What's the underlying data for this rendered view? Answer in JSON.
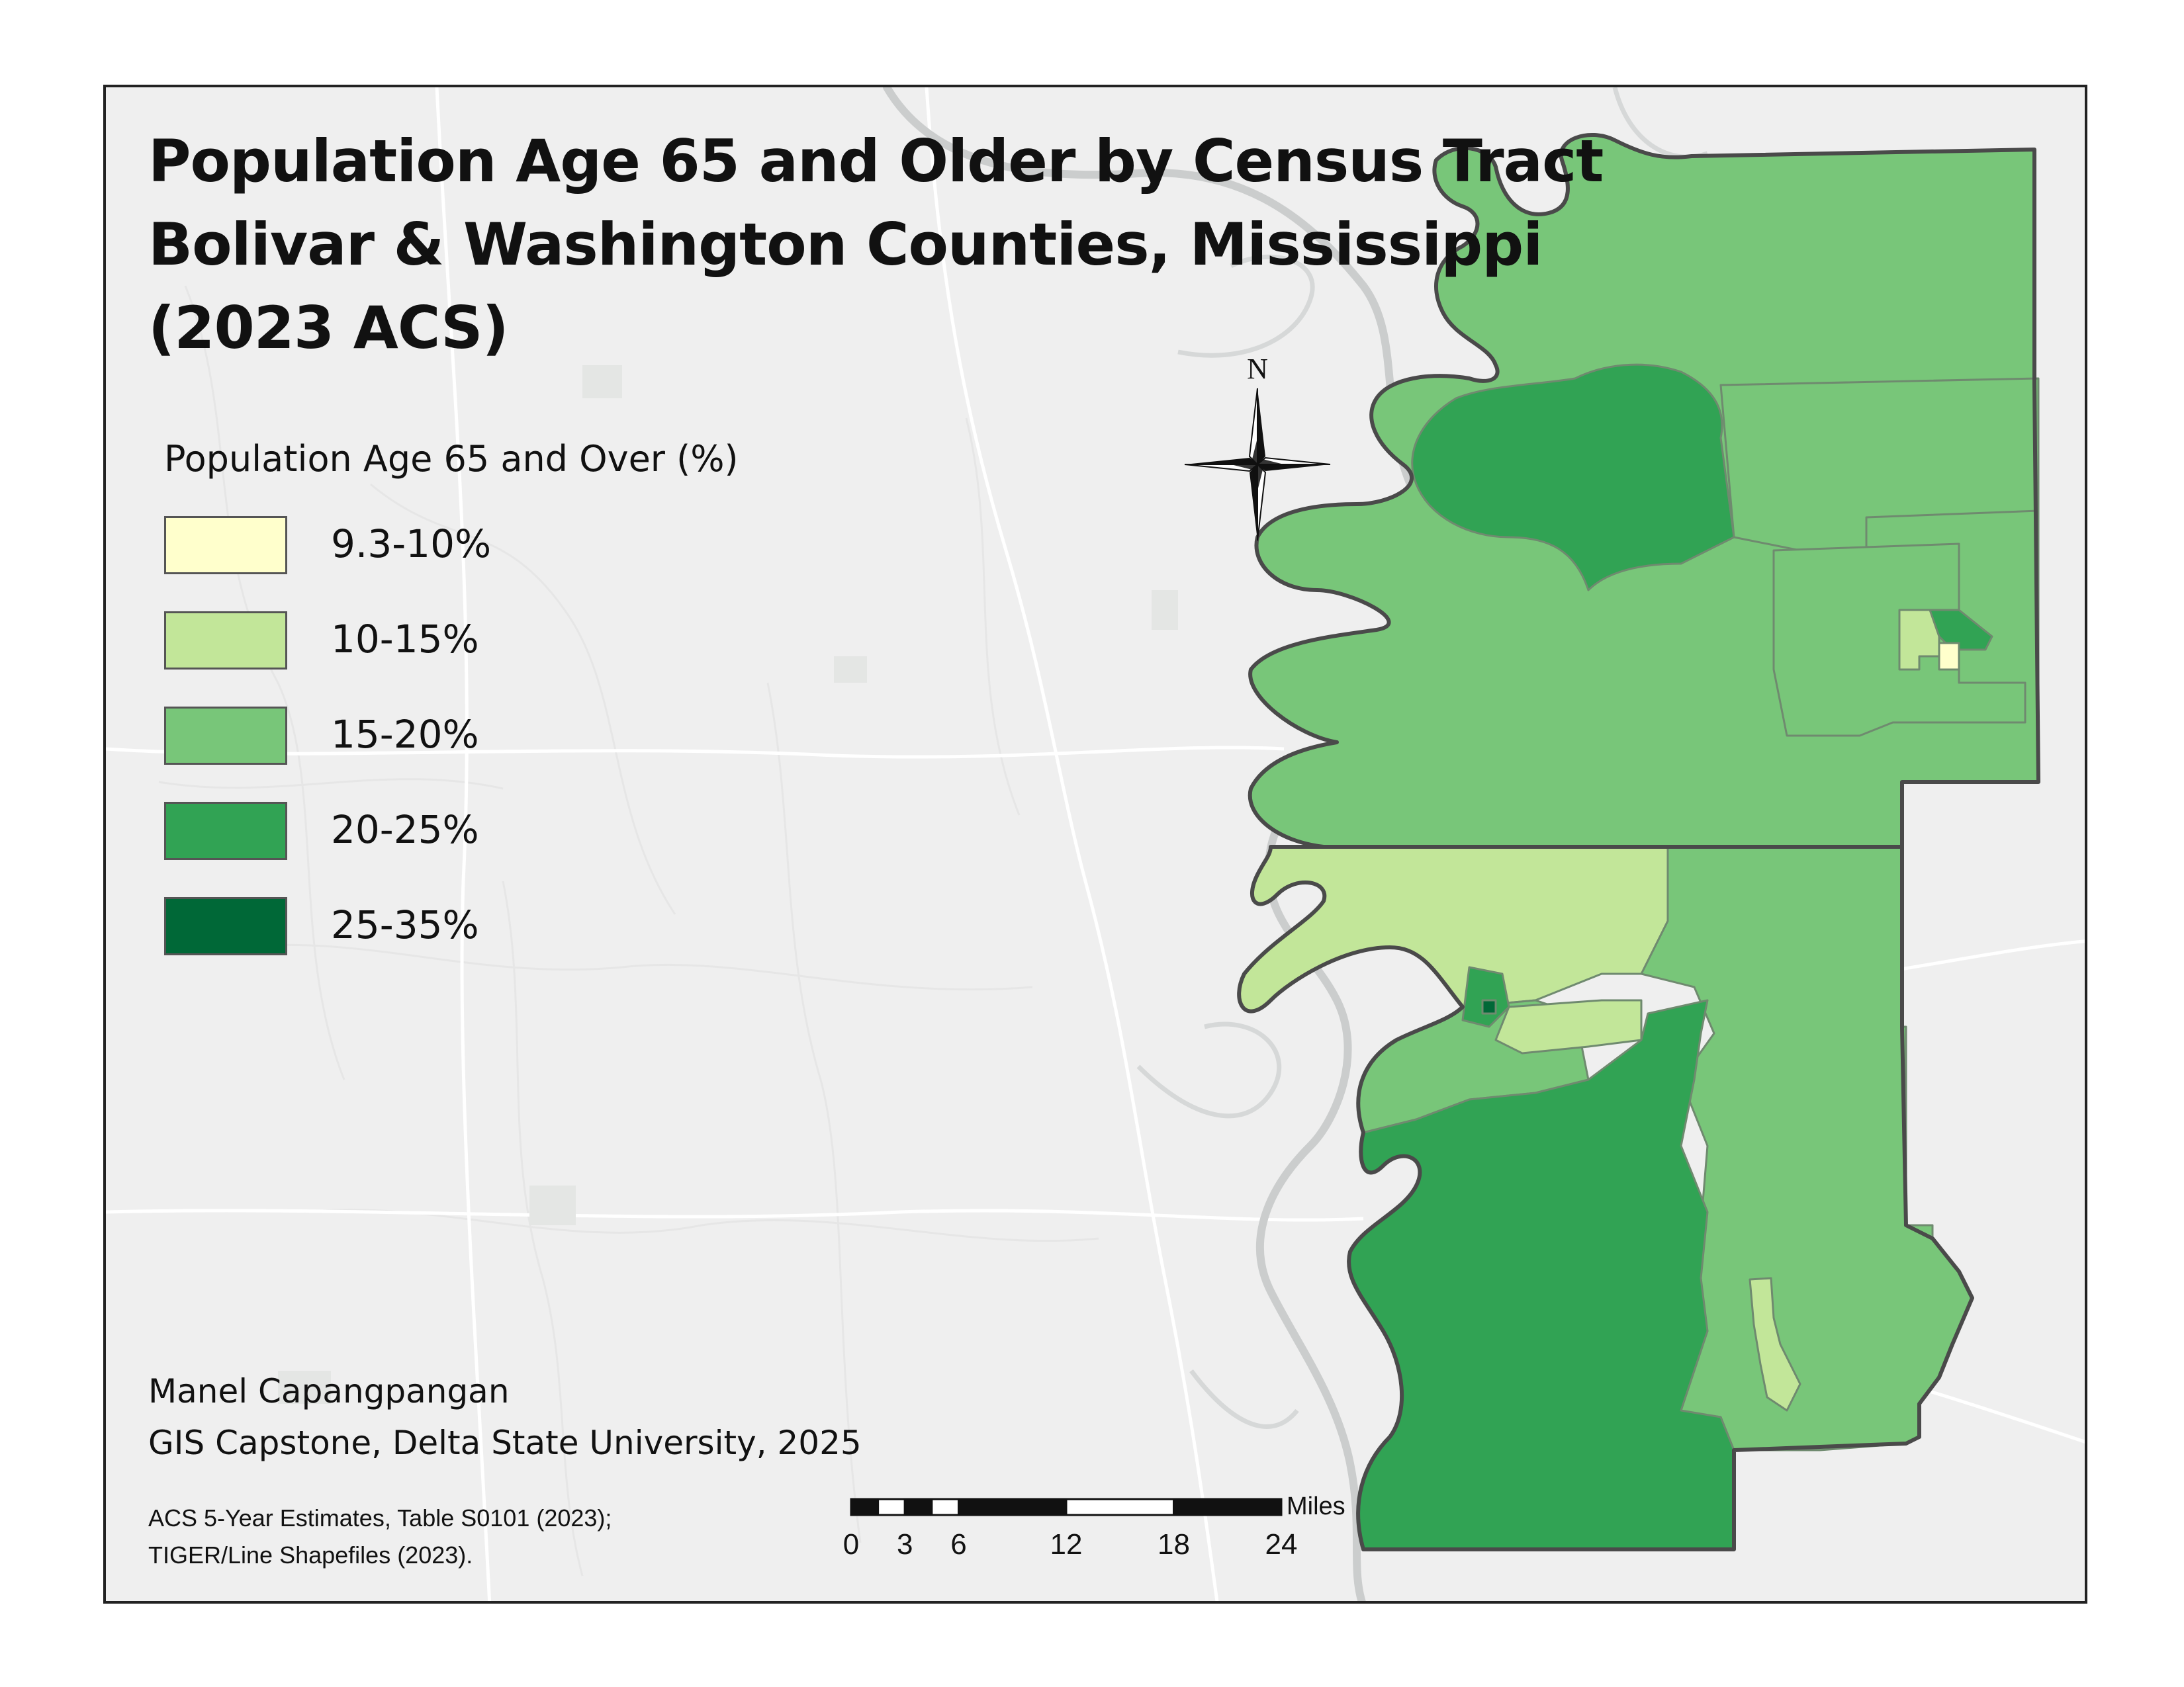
{
  "title": {
    "line1": "Population Age 65 and Older by Census Tract",
    "line2": "Bolivar & Washington Counties, Mississippi",
    "line3": "(2023 ACS)"
  },
  "legend": {
    "title": "Population Age 65 and Over (%)",
    "classes": [
      {
        "label": "9.3-10%",
        "color": "#ffffcc"
      },
      {
        "label": "10-15%",
        "color": "#c2e699"
      },
      {
        "label": "15-20%",
        "color": "#78c679"
      },
      {
        "label": "20-25%",
        "color": "#31a354"
      },
      {
        "label": "25-35%",
        "color": "#006837"
      }
    ]
  },
  "credit": {
    "author": "Manel Capangpangan",
    "course": "GIS Capstone, Delta State University, 2025"
  },
  "sources": {
    "line1": "ACS 5-Year Estimates, Table S0101 (2023);",
    "line2": "TIGER/Line Shapefiles (2023)."
  },
  "scale": {
    "unit": "Miles",
    "ticks": [
      "0",
      "3",
      "6",
      "12",
      "18",
      "24"
    ],
    "tick_values": [
      0,
      3,
      6,
      12,
      18,
      24
    ]
  },
  "north": {
    "label": "N"
  },
  "colors": {
    "background": "#efefef",
    "county_outline": "#4a4a4a",
    "river": "#c9cbcb",
    "road": "#ffffff"
  }
}
